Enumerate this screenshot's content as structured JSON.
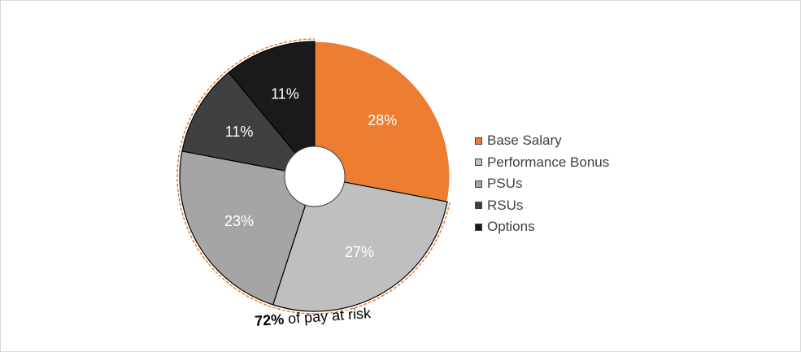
{
  "chart_data": {
    "type": "pie",
    "style": "donut",
    "categories": [
      "Base Salary",
      "Performance Bonus",
      "PSUs",
      "RSUs",
      "Options"
    ],
    "values": [
      28,
      27,
      23,
      11,
      11
    ],
    "value_labels": [
      "28%",
      "27%",
      "23%",
      "11%",
      "11%"
    ],
    "colors": [
      "#ed7d31",
      "#bfbfbf",
      "#a5a5a5",
      "#404040",
      "#1a1a1a"
    ],
    "legend_position": "right",
    "annotation": {
      "bold": "72%",
      "text": " of pay at risk",
      "highlight_border": "#ed7d31"
    }
  }
}
